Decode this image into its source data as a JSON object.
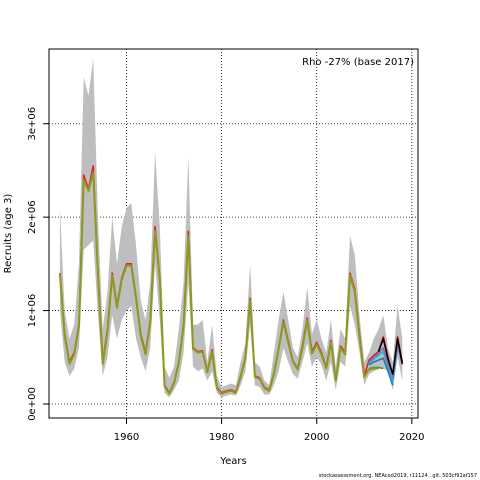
{
  "footer": "stockassessment.org, NEAcod2019, r11124 , git: 503cf91af157",
  "chart_data": {
    "type": "line",
    "title": "",
    "annotation": "Rho -27% (base 2017)",
    "xlabel": "Years",
    "ylabel": "Recruits (age 3)",
    "xlim": [
      1943.7,
      2021.3
    ],
    "ylim": [
      -150000,
      3800000
    ],
    "xticks": [
      1960,
      1980,
      2000,
      2020
    ],
    "xtick_labels": [
      "1960",
      "1980",
      "2000",
      "2020"
    ],
    "yticks": [
      0,
      1000000,
      2000000,
      3000000
    ],
    "ytick_labels": [
      "0e+00",
      "1e+06",
      "2e+06",
      "3e+06"
    ],
    "grid": true,
    "grid_style": "dotted",
    "band_color": "#bebebe",
    "band": {
      "x": [
        1946,
        1947,
        1948,
        1949,
        1950,
        1951,
        1952,
        1953,
        1954,
        1955,
        1956,
        1957,
        1958,
        1959,
        1960,
        1961,
        1962,
        1963,
        1964,
        1965,
        1966,
        1967,
        1968,
        1969,
        1970,
        1971,
        1972,
        1973,
        1974,
        1975,
        1976,
        1977,
        1978,
        1979,
        1980,
        1981,
        1982,
        1983,
        1984,
        1985,
        1986,
        1987,
        1988,
        1989,
        1990,
        1991,
        1992,
        1993,
        1994,
        1995,
        1996,
        1997,
        1998,
        1999,
        2000,
        2001,
        2002,
        2003,
        2004,
        2005,
        2006,
        2007,
        2008,
        2009,
        2010,
        2011,
        2012,
        2013,
        2014,
        2015,
        2016,
        2017,
        2018
      ],
      "lower": [
        1000000,
        450000,
        300000,
        380000,
        600000,
        1650000,
        1700000,
        1750000,
        950000,
        300000,
        500000,
        950000,
        700000,
        900000,
        1000000,
        1050000,
        700000,
        500000,
        350000,
        600000,
        1500000,
        900000,
        120000,
        70000,
        150000,
        250000,
        550000,
        1300000,
        400000,
        350000,
        380000,
        250000,
        350000,
        120000,
        70000,
        90000,
        100000,
        90000,
        200000,
        350000,
        850000,
        200000,
        180000,
        100000,
        100000,
        200000,
        350000,
        600000,
        450000,
        320000,
        270000,
        450000,
        650000,
        400000,
        500000,
        420000,
        250000,
        450000,
        150000,
        450000,
        400000,
        1050000,
        850000,
        550000,
        200000,
        320000,
        350000,
        380000,
        380000,
        350000,
        150000,
        500000,
        250000
      ],
      "upper": [
        2100000,
        1000000,
        700000,
        850000,
        1500000,
        3500000,
        3300000,
        3700000,
        2000000,
        800000,
        1200000,
        2000000,
        1500000,
        1900000,
        2100000,
        2150000,
        1700000,
        1100000,
        900000,
        1300000,
        2700000,
        1900000,
        400000,
        280000,
        400000,
        800000,
        1300000,
        2650000,
        850000,
        850000,
        900000,
        450000,
        850000,
        300000,
        180000,
        200000,
        220000,
        200000,
        450000,
        650000,
        1500000,
        450000,
        400000,
        250000,
        200000,
        550000,
        900000,
        1200000,
        900000,
        600000,
        500000,
        800000,
        1250000,
        750000,
        900000,
        700000,
        550000,
        900000,
        400000,
        800000,
        700000,
        1800000,
        1600000,
        950000,
        450000,
        550000,
        700000,
        800000,
        950000,
        600000,
        450000,
        1050000,
        700000
      ]
    },
    "series": [
      {
        "color": "#d62728",
        "x": [
          1946,
          1947,
          1948,
          1949,
          1950,
          1951,
          1952,
          1953,
          1954,
          1955,
          1956,
          1957,
          1958,
          1959,
          1960,
          1961,
          1962,
          1963,
          1964,
          1965,
          1966,
          1967,
          1968,
          1969,
          1970,
          1971,
          1972,
          1973,
          1974,
          1975,
          1976,
          1977,
          1978,
          1979,
          1980,
          1981,
          1982,
          1983,
          1984,
          1985,
          1986,
          1987,
          1988,
          1989,
          1990,
          1991,
          1992,
          1993,
          1994,
          1995,
          1996,
          1997,
          1998,
          1999,
          2000,
          2001,
          2002,
          2003,
          2004,
          2005,
          2006,
          2007,
          2008,
          2009,
          2010,
          2011,
          2012,
          2013,
          2014,
          2015,
          2016,
          2017,
          2018
        ],
        "y": [
          1400000,
          750000,
          450000,
          550000,
          850000,
          2450000,
          2300000,
          2550000,
          1400000,
          450000,
          800000,
          1400000,
          1050000,
          1350000,
          1500000,
          1500000,
          1150000,
          750000,
          550000,
          900000,
          1900000,
          1350000,
          200000,
          120000,
          230000,
          450000,
          850000,
          1850000,
          600000,
          560000,
          570000,
          350000,
          580000,
          180000,
          120000,
          140000,
          150000,
          130000,
          300000,
          500000,
          1130000,
          300000,
          280000,
          180000,
          150000,
          330000,
          600000,
          900000,
          680000,
          460000,
          380000,
          620000,
          920000,
          560000,
          660000,
          550000,
          390000,
          680000,
          260000,
          620000,
          550000,
          1400000,
          1230000,
          750000,
          300000,
          470000,
          520000,
          560000,
          720000,
          500000,
          300000,
          720000,
          450000
        ]
      },
      {
        "color": "#2ca02c",
        "x": [
          2011,
          2012,
          2013,
          2014
        ],
        "y": [
          380000,
          390000,
          390000,
          380000
        ]
      },
      {
        "color": "#1f77b4",
        "x": [
          2011,
          2012,
          2013,
          2014,
          2015,
          2016
        ],
        "y": [
          420000,
          450000,
          470000,
          490000,
          350000,
          200000
        ]
      },
      {
        "color": "#17becf",
        "x": [
          2011,
          2012,
          2013,
          2014,
          2015,
          2016,
          2017
        ],
        "y": [
          430000,
          480000,
          520000,
          560000,
          400000,
          240000,
          600000
        ]
      },
      {
        "color": "#9467bd",
        "x": [
          2011,
          2012,
          2013,
          2014,
          2015,
          2016,
          2017,
          2018
        ],
        "y": [
          450000,
          500000,
          540000,
          600000,
          420000,
          280000,
          640000,
          420000
        ]
      },
      {
        "color": "#000000",
        "x": [
          2013,
          2014,
          2015,
          2016,
          2017,
          2018
        ],
        "y": [
          560000,
          700000,
          480000,
          320000,
          700000,
          430000
        ]
      },
      {
        "color": "#8c9a1f",
        "x": [
          1946,
          1947,
          1948,
          1949,
          1950,
          1951,
          1952,
          1953,
          1954,
          1955,
          1956,
          1957,
          1958,
          1959,
          1960,
          1961,
          1962,
          1963,
          1964,
          1965,
          1966,
          1967,
          1968,
          1969,
          1970,
          1971,
          1972,
          1973,
          1974,
          1975,
          1976,
          1977,
          1978,
          1979,
          1980,
          1981,
          1982,
          1983,
          1984,
          1985,
          1986,
          1987,
          1988,
          1989,
          1990,
          1991,
          1992,
          1993,
          1994,
          1995,
          1996,
          1997,
          1998,
          1999,
          2000,
          2001,
          2002,
          2003,
          2004,
          2005,
          2006,
          2007,
          2008,
          2009,
          2010,
          2011,
          2012,
          2013
        ],
        "y": [
          1380000,
          730000,
          430000,
          530000,
          830000,
          2400000,
          2280000,
          2480000,
          1380000,
          430000,
          780000,
          1380000,
          1030000,
          1330000,
          1480000,
          1480000,
          1130000,
          730000,
          530000,
          880000,
          1850000,
          1330000,
          190000,
          110000,
          220000,
          440000,
          830000,
          1800000,
          590000,
          550000,
          560000,
          340000,
          560000,
          170000,
          110000,
          130000,
          140000,
          120000,
          290000,
          490000,
          1110000,
          290000,
          270000,
          170000,
          140000,
          320000,
          590000,
          880000,
          660000,
          450000,
          370000,
          600000,
          900000,
          540000,
          640000,
          530000,
          380000,
          660000,
          250000,
          600000,
          530000,
          1380000,
          1200000,
          720000,
          290000,
          370000,
          380000,
          380000
        ]
      }
    ]
  }
}
